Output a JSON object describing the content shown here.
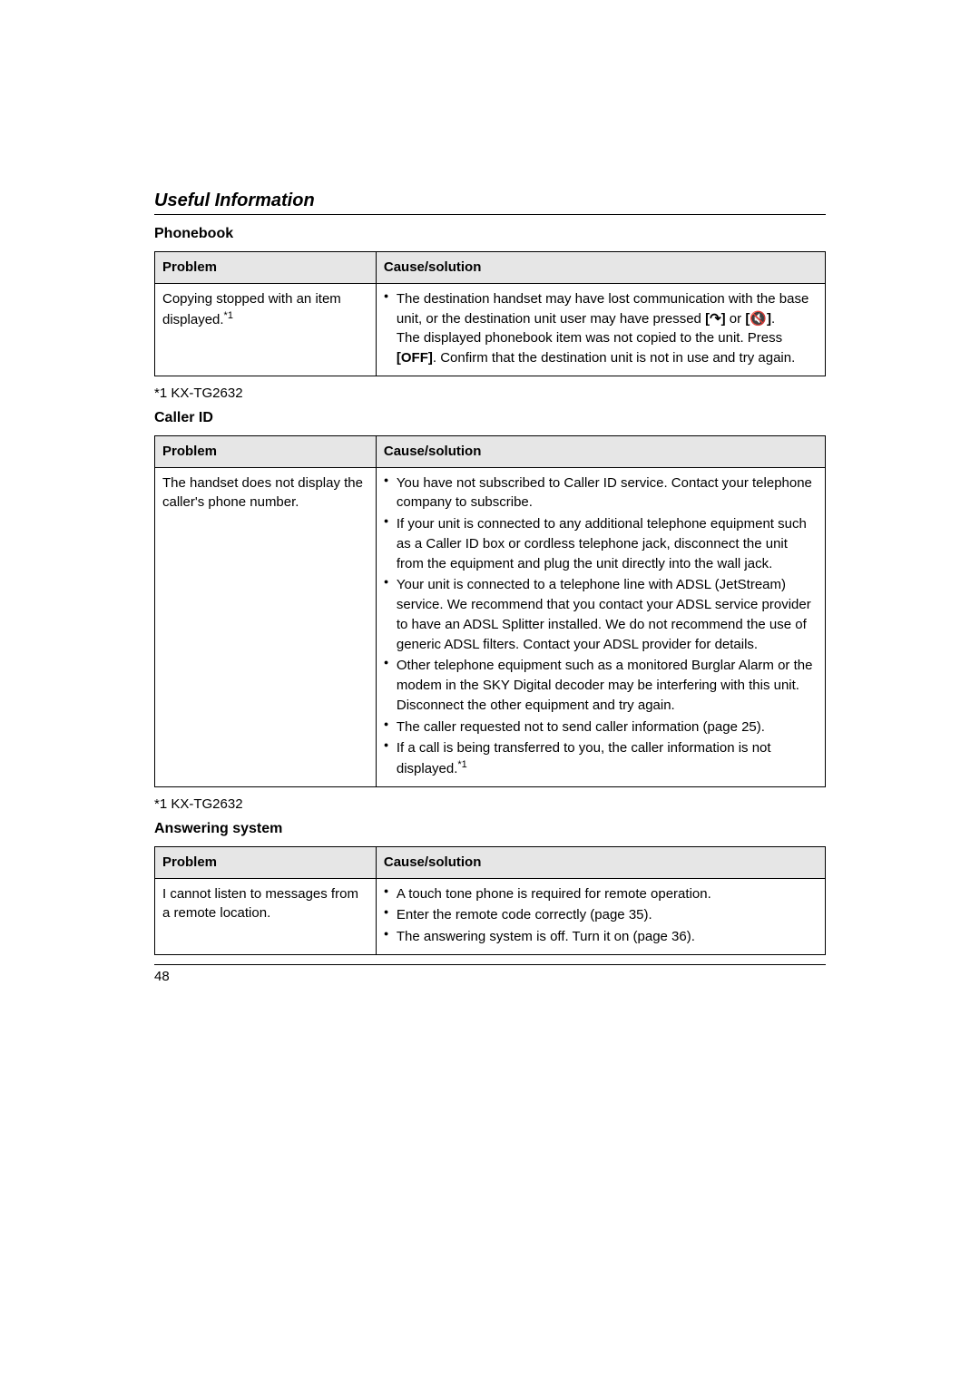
{
  "section_title": "Useful Information",
  "phonebook": {
    "heading": "Phonebook",
    "table": {
      "col_problem": "Problem",
      "col_cause": "Cause/solution",
      "row1_problem_a": "Copying stopped with an item displayed.",
      "row1_problem_sup": "*1",
      "row1_bullet1": "The destination handset may have lost communication with the base unit, or the destination unit user may have pressed ",
      "row1_icon1_open": "[",
      "row1_icon1": "↷",
      "row1_icon1_close": "]",
      "row1_or": " or ",
      "row1_icon2_open": "[",
      "row1_icon2": "🔇",
      "row1_icon2_close": "]",
      "row1_period": ".",
      "row1_cont_a": "The displayed phonebook item was not copied to the unit. Press ",
      "row1_off_open": "[",
      "row1_off": "OFF",
      "row1_off_close": "]",
      "row1_cont_b": ". Confirm that the destination unit is not in use and try again."
    },
    "footnote": "*1 KX-TG2632"
  },
  "callerid": {
    "heading": "Caller ID",
    "table": {
      "col_problem": "Problem",
      "col_cause": "Cause/solution",
      "row1_problem": "The handset does not display the caller's phone number.",
      "b1": "You have not subscribed to Caller ID service. Contact your telephone company to subscribe.",
      "b2": "If your unit is connected to any additional telephone equipment such as a Caller ID box or cordless telephone jack, disconnect the unit from the equipment and plug the unit directly into the wall jack.",
      "b3": "Your unit is connected to a telephone line with ADSL (JetStream) service. We recommend that you contact your ADSL service provider to have an ADSL Splitter installed. We do not recommend the use of generic ADSL filters. Contact your ADSL provider for details.",
      "b4": "Other telephone equipment such as a monitored Burglar Alarm or the modem in the SKY Digital decoder may be interfering with this unit. Disconnect the other equipment and try again.",
      "b5": "The caller requested not to send caller information (page 25).",
      "b6a": "If a call is being transferred to you, the caller information is not displayed.",
      "b6_sup": "*1"
    },
    "footnote": "*1 KX-TG2632"
  },
  "answering": {
    "heading": "Answering system",
    "table": {
      "col_problem": "Problem",
      "col_cause": "Cause/solution",
      "row1_problem": "I cannot listen to messages from a remote location.",
      "b1": "A touch tone phone is required for remote operation.",
      "b2": "Enter the remote code correctly (page 35).",
      "b3": "The answering system is off. Turn it on (page 36)."
    }
  },
  "page_number": "48"
}
